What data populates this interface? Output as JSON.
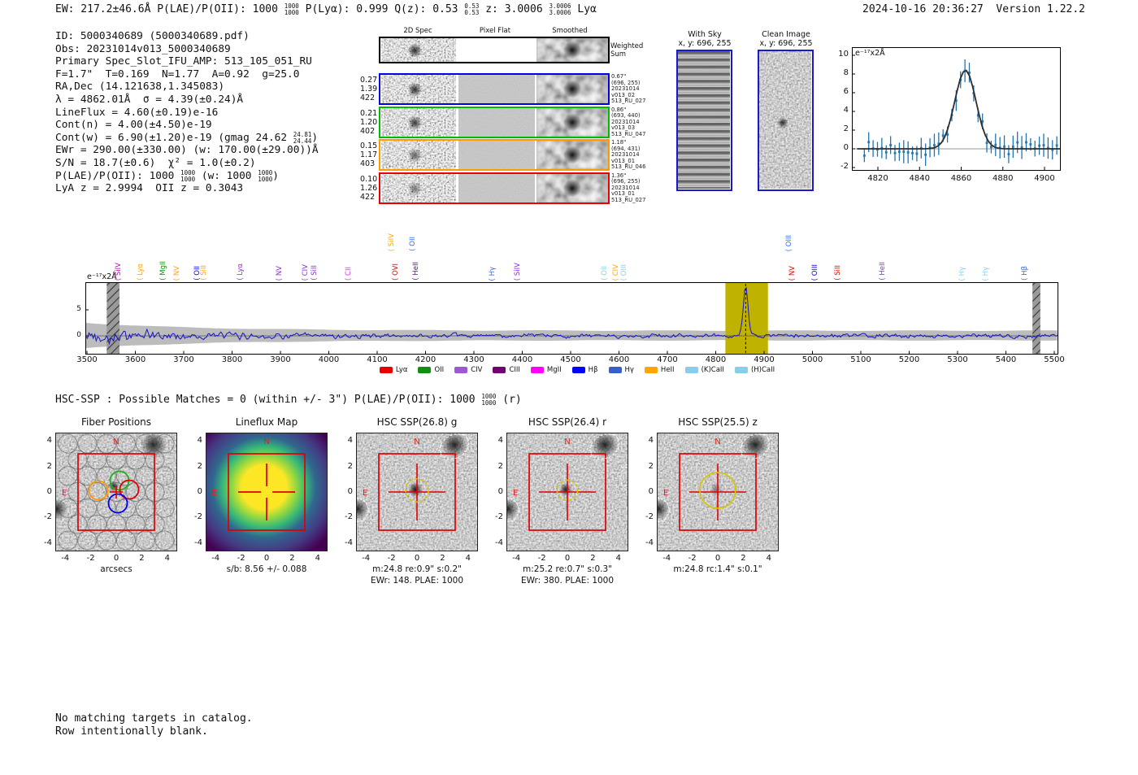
{
  "header": {
    "left_segments": [
      {
        "t": "EW: 217.2±46.6Å  P(LAE)/P(OII): 1000 "
      },
      {
        "stack": [
          "1000",
          "1000"
        ]
      },
      {
        "t": "  P(Lyα): 0.999  Q(z): 0.53 "
      },
      {
        "stack": [
          "0.53",
          "0.53"
        ]
      },
      {
        "t": "  z: 3.0006 "
      },
      {
        "stack": [
          "3.0006",
          "3.0006"
        ]
      },
      {
        "t": " Lyα"
      }
    ],
    "timestamp": "2024-10-16 20:36:27",
    "version": "Version 1.22.2"
  },
  "info_lines": [
    [
      {
        "t": "ID: 5000340689 (5000340689.pdf)"
      }
    ],
    [
      {
        "t": "Obs: 20231014v013_5000340689"
      }
    ],
    [
      {
        "t": "Primary Spec_Slot_IFU_AMP: 513_105_051_RU"
      }
    ],
    [
      {
        "t": "F=1.7\"  T=0.169  N=1.77  A=0.92  g=25.0"
      }
    ],
    [
      {
        "t": "RA,Dec (14.121638,1.345083)"
      }
    ],
    [
      {
        "t": "λ = 4862.01Å  σ = 4.39(±0.24)Å"
      }
    ],
    [
      {
        "t": "LineFlux = 4.60(±0.19)e-16"
      }
    ],
    [
      {
        "t": "Cont(n) = 4.00(±4.50)e-19"
      }
    ],
    [
      {
        "t": "Cont(w) = 6.90(±1.20)e-19 (gmag 24.62 "
      },
      {
        "stack": [
          "24.81",
          "24.44"
        ]
      },
      {
        "t": ")"
      }
    ],
    [
      {
        "t": "EWr = 290.00(±330.00) (w: 170.00(±29.00))Å"
      }
    ],
    [
      {
        "t": "S/N = 18.7(±0.6)  χ² = 1.0(±0.2)"
      }
    ],
    [
      {
        "t": "P(LAE)/P(OII): 1000 "
      },
      {
        "stack": [
          "1000",
          "1000"
        ]
      },
      {
        "t": " (w: 1000 "
      },
      {
        "stack": [
          "1000",
          "1000"
        ]
      },
      {
        "t": ")"
      }
    ],
    [
      {
        "t": "LyA z = 2.9994  OII z = 0.3043"
      }
    ]
  ],
  "spec2d": {
    "headers": [
      "2D Spec",
      "Pixel Flat",
      "Smoothed"
    ],
    "weighted_label": "Weighted\nSum",
    "rows": [
      {
        "border": "#000000",
        "left": [],
        "right": []
      },
      {
        "border": "#0000ee",
        "left": [
          "0.27",
          "1.39",
          "422"
        ],
        "right": [
          "0.67\"",
          "(696, 255)",
          "20231014",
          "v013_02",
          "513_RU_027"
        ]
      },
      {
        "border": "#00bb00",
        "left": [
          "0.21",
          "1.20",
          "402"
        ],
        "right": [
          "0.86\"",
          "(693, 440)",
          "20231014",
          "v013_03",
          "513_RU_047"
        ]
      },
      {
        "border": "#ff9900",
        "left": [
          "0.15",
          "1.17",
          "403"
        ],
        "right": [
          "1.18\"",
          "(694, 431)",
          "20231014",
          "v013_01",
          "513_RU_046"
        ]
      },
      {
        "border": "#ee0000",
        "left": [
          "0.10",
          "1.26",
          "422"
        ],
        "right": [
          "1.36\"",
          "(696, 255)",
          "20231014",
          "v013_01",
          "513_RU_027"
        ]
      }
    ]
  },
  "sky_panels": [
    {
      "title": "With Sky",
      "subtitle": "x, y: 696, 255"
    },
    {
      "title": "Clean Image",
      "subtitle": "x, y: 696, 255"
    }
  ],
  "chart_data": [
    {
      "id": "line_fit_zoom",
      "type": "line",
      "unit_label": "e⁻¹⁷x2Å",
      "x_ticks": [
        4820,
        4840,
        4860,
        4880,
        4900
      ],
      "y_ticks": [
        -2,
        0,
        2,
        4,
        6,
        8,
        10
      ],
      "x_range": [
        4808,
        4910
      ],
      "y_range": [
        -2.3,
        10.9
      ],
      "gaussian_fit": {
        "center": 4862.01,
        "sigma": 4.39,
        "amplitude": 8.4,
        "baseline": 0.0
      },
      "point_color": "#1f77b4",
      "fit_color": "#2e2e2e"
    },
    {
      "id": "full_spectrum",
      "type": "line",
      "unit_label": "e⁻¹⁷x2Å",
      "x_ticks": [
        3500,
        3600,
        3700,
        3800,
        3900,
        4000,
        4100,
        4200,
        4300,
        4400,
        4500,
        4600,
        4700,
        4800,
        4900,
        5000,
        5100,
        5200,
        5300,
        5400,
        5500
      ],
      "y_ticks": [
        0,
        5
      ],
      "x_range": [
        3488,
        5512
      ],
      "emission_peak": {
        "center": 4862.01,
        "height": 9.4,
        "sigma": 4.8
      },
      "highlight_band": [
        4820,
        4908
      ],
      "highlight_color": "#c0b200",
      "hatch_bands": [
        [
          3541,
          3567
        ],
        [
          5455,
          5471
        ]
      ],
      "dashed_line_x": 4862.01,
      "line_color": "#1212cc",
      "envelope_color": "#b5b5b5",
      "legend": [
        {
          "label": "Lyα",
          "color": "#e60000"
        },
        {
          "label": "OII",
          "color": "#109010"
        },
        {
          "label": "CIV",
          "color": "#9b59d6"
        },
        {
          "label": "CIII",
          "color": "#730073"
        },
        {
          "label": "MgII",
          "color": "#ff00ff"
        },
        {
          "label": "Hβ",
          "color": "#0000ff"
        },
        {
          "label": "Hγ",
          "color": "#3a5fcd"
        },
        {
          "label": "HeII",
          "color": "#ffa500"
        },
        {
          "label": "(K)CaII",
          "color": "#87ceeb"
        },
        {
          "label": "(H)CaII",
          "color": "#87ceeb"
        }
      ],
      "line_labels": [
        {
          "wl": 3567,
          "text": "SiIV",
          "color": "#c000c0"
        },
        {
          "wl": 3612,
          "text": "Lyα",
          "color": "#ffa500"
        },
        {
          "wl": 3660,
          "text": "MgII",
          "color": "#109010"
        },
        {
          "wl": 3688,
          "text": "NV",
          "color": "#ffa500"
        },
        {
          "wl": 3731,
          "text": "OII",
          "color": "#0000ff"
        },
        {
          "wl": 3744,
          "text": "SiII",
          "color": "#ffa500"
        },
        {
          "wl": 3820,
          "text": "Lyα",
          "color": "#8a2be2"
        },
        {
          "wl": 3900,
          "text": "NV",
          "color": "#8a2be2"
        },
        {
          "wl": 3954,
          "text": "CIV",
          "color": "#8a2be2"
        },
        {
          "wl": 3972,
          "text": "SiII",
          "color": "#8a2be2"
        },
        {
          "wl": 4043,
          "text": "CII",
          "color": "#ff22ff"
        },
        {
          "wl": 4132,
          "text": "SiIV",
          "color": "#ffa500",
          "raised": true
        },
        {
          "wl": 4140,
          "text": "OVI",
          "color": "#e60000"
        },
        {
          "wl": 4176,
          "text": "OII",
          "color": "#2e6bff",
          "raised": true
        },
        {
          "wl": 4183,
          "text": "HeII",
          "color": "#730099"
        },
        {
          "wl": 4340,
          "text": "Hγ",
          "color": "#3a5fcd"
        },
        {
          "wl": 4392,
          "text": "SiIV",
          "color": "#8a2be2"
        },
        {
          "wl": 4572,
          "text": "OII",
          "color": "#87ceeb"
        },
        {
          "wl": 4595,
          "text": "CIV",
          "color": "#ffa500"
        },
        {
          "wl": 4612,
          "text": "OIII",
          "color": "#87ceeb"
        },
        {
          "wl": 4953,
          "text": "OIII",
          "color": "#2e6bff",
          "raised": true
        },
        {
          "wl": 4961,
          "text": "NV",
          "color": "#e60000"
        },
        {
          "wl": 5008,
          "text": "OIII",
          "color": "#0000cc"
        },
        {
          "wl": 5055,
          "text": "SiII",
          "color": "#e60000"
        },
        {
          "wl": 5147,
          "text": "HeII",
          "color": "#8a2be2"
        },
        {
          "wl": 5312,
          "text": "Hγ",
          "color": "#87ceeb"
        },
        {
          "wl": 5360,
          "text": "Hγ",
          "color": "#87ceeb"
        },
        {
          "wl": 5441,
          "text": "Hβ",
          "color": "#3a5fcd"
        }
      ]
    }
  ],
  "hsc_header_segments": [
    {
      "t": "HSC-SSP : Possible Matches = 0 (within +/- 3\")  P(LAE)/P(OII): 1000 "
    },
    {
      "stack": [
        "1000",
        "1000"
      ]
    },
    {
      "t": " (r)"
    }
  ],
  "cutouts": {
    "x_ticks": [
      -4,
      -2,
      0,
      2,
      4
    ],
    "y_ticks": [
      4,
      2,
      0,
      -2,
      -4
    ],
    "compass": {
      "north": "N",
      "east": "E"
    },
    "panels": [
      {
        "type": "fiber",
        "title": "Fiber Positions",
        "xlabel": "arcsecs",
        "caption1": "",
        "caption2": ""
      },
      {
        "type": "lineflux",
        "title": "Lineflux Map",
        "xlabel": "",
        "caption1": "s/b: 8.56 +/- 0.088",
        "caption2": ""
      },
      {
        "type": "hsc",
        "title": "HSC SSP(26.8) g",
        "xlabel": "",
        "caption1": "m:24.8  re:0.9\"  s:0.2\"",
        "caption2": "EWr: 148. PLAE: 1000",
        "aperture": "dashed",
        "aperture_r": 0.9
      },
      {
        "type": "hsc",
        "title": "HSC SSP(26.4) r",
        "xlabel": "",
        "caption1": "m:25.2  re:0.7\"  s:0.3\"",
        "caption2": "EWr: 380. PLAE: 1000",
        "aperture": "dashed",
        "aperture_r": 0.8
      },
      {
        "type": "hsc",
        "title": "HSC SSP(25.5) z",
        "xlabel": "",
        "caption1": "m:24.8 rc:1.4\"  s:0.1\"",
        "caption2": "",
        "aperture": "solid",
        "aperture_r": 1.4
      }
    ]
  },
  "footer": [
    "No matching targets in catalog.",
    "Row intentionally blank."
  ]
}
